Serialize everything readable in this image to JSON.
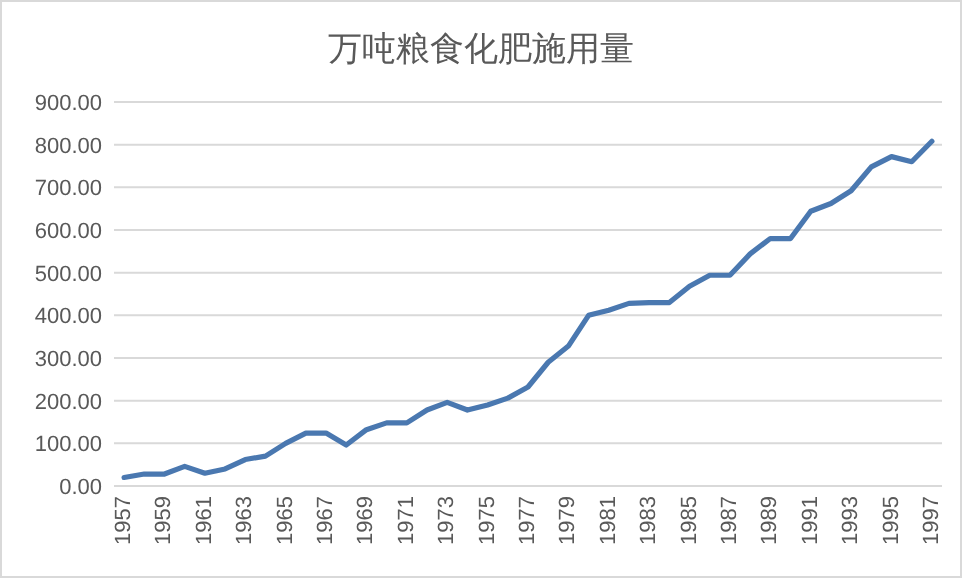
{
  "chart_data": {
    "type": "line",
    "title": "万吨粮食化肥施用量",
    "categories": [
      "1957",
      null,
      "1959",
      null,
      "1961",
      null,
      "1963",
      null,
      "1965",
      null,
      "1967",
      null,
      "1969",
      null,
      "1971",
      null,
      "1973",
      null,
      "1975",
      null,
      "1977",
      null,
      "1979",
      null,
      "1981",
      null,
      "1983",
      null,
      "1985",
      null,
      "1987",
      null,
      "1989",
      null,
      "1991",
      null,
      "1993",
      null,
      "1995",
      null,
      "1997"
    ],
    "series": [
      {
        "color": "#4a78b0",
        "values": [
          20,
          28,
          28,
          46,
          30,
          40,
          62,
          70,
          100,
          124,
          124,
          96,
          132,
          148,
          148,
          178,
          196,
          178,
          190,
          206,
          232,
          290,
          328,
          400,
          412,
          428,
          430,
          430,
          468,
          494,
          494,
          544,
          580,
          580,
          644,
          662,
          692,
          748,
          772,
          760,
          808
        ]
      }
    ],
    "ylim": [
      0,
      900
    ],
    "yticks": [
      {
        "value": 0,
        "label": "0.00"
      },
      {
        "value": 100,
        "label": "100.00"
      },
      {
        "value": 200,
        "label": "200.00"
      },
      {
        "value": 300,
        "label": "300.00"
      },
      {
        "value": 400,
        "label": "400.00"
      },
      {
        "value": 500,
        "label": "500.00"
      },
      {
        "value": 600,
        "label": "600.00"
      },
      {
        "value": 700,
        "label": "700.00"
      },
      {
        "value": 800,
        "label": "800.00"
      },
      {
        "value": 900,
        "label": "900.00"
      }
    ],
    "grid": "y",
    "marker": "none",
    "line_style": "solid"
  }
}
